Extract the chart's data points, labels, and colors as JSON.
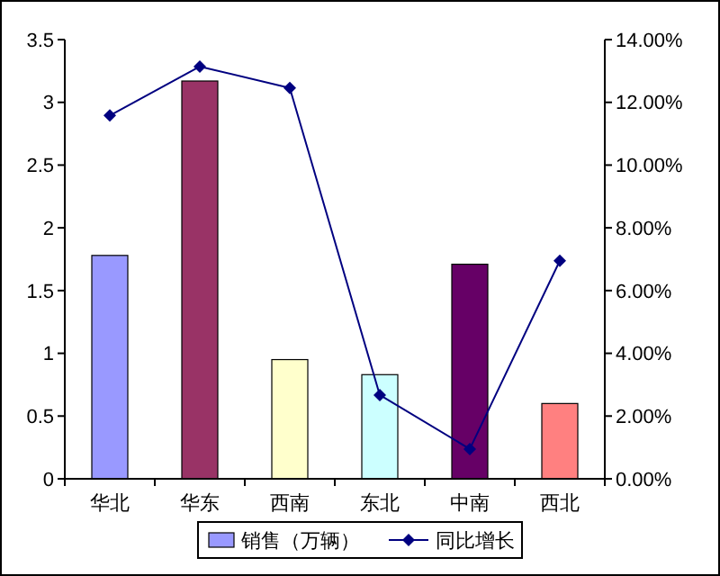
{
  "chart_data": {
    "type": "bar",
    "categories": [
      "华北",
      "华东",
      "西南",
      "东北",
      "中南",
      "西北"
    ],
    "series": [
      {
        "name": "销售（万辆）",
        "color": "#9999ff",
        "colors": [
          "#9999ff",
          "#993366",
          "#ffffcc",
          "#ccffff",
          "#660066",
          "#ff8080"
        ],
        "values": [
          1.78,
          3.17,
          0.95,
          0.83,
          1.71,
          0.6
        ]
      },
      {
        "name": "同比增长",
        "type": "line",
        "axis": "y2",
        "color": "#000080",
        "marker": "diamond",
        "values": [
          11.58,
          13.14,
          12.46,
          2.67,
          0.95,
          6.95
        ]
      }
    ],
    "ylim": [
      0,
      3.5
    ],
    "yticks": [
      0,
      0.5,
      1,
      1.5,
      2,
      2.5,
      3,
      3.5
    ],
    "y2lim": [
      0,
      14
    ],
    "y2ticks": [
      {
        "value": 0,
        "label": "0.00%"
      },
      {
        "value": 2,
        "label": "2.00%"
      },
      {
        "value": 4,
        "label": "4.00%"
      },
      {
        "value": 6,
        "label": "6.00%"
      },
      {
        "value": 8,
        "label": "8.00%"
      },
      {
        "value": 10,
        "label": "10.00%"
      },
      {
        "value": 12,
        "label": "12.00%"
      },
      {
        "value": 14,
        "label": "14.00%"
      }
    ],
    "grid": false,
    "legend": "bottom"
  }
}
